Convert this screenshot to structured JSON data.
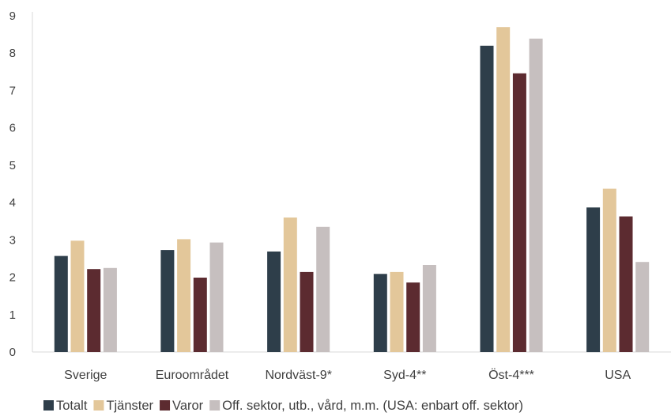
{
  "chart_data": {
    "type": "bar",
    "categories": [
      "Sverige",
      "Euroområdet",
      "Nordväst-9*",
      "Syd-4**",
      "Öst-4***",
      "USA"
    ],
    "series": [
      {
        "name": "Totalt",
        "color": "#2e3e4a",
        "values": [
          2.57,
          2.73,
          2.69,
          2.09,
          8.2,
          3.87
        ]
      },
      {
        "name": "Tjänster",
        "color": "#e3c79a",
        "values": [
          2.98,
          3.02,
          3.6,
          2.14,
          8.7,
          4.37
        ]
      },
      {
        "name": "Varor",
        "color": "#5c2b30",
        "values": [
          2.22,
          1.99,
          2.14,
          1.86,
          7.46,
          3.63
        ]
      },
      {
        "name": "Off. sektor, utb., vård, m.m. (USA: enbart off. sektor)",
        "color": "#c6bfbf",
        "values": [
          2.25,
          2.93,
          3.35,
          2.33,
          8.39,
          2.41
        ]
      }
    ],
    "ylim": [
      0,
      9
    ],
    "yticks": [
      "0",
      "1",
      "2",
      "3",
      "4",
      "5",
      "6",
      "7",
      "8",
      "9"
    ],
    "grid": false,
    "legend_position": "bottom",
    "title": "",
    "xlabel": "",
    "ylabel": ""
  }
}
